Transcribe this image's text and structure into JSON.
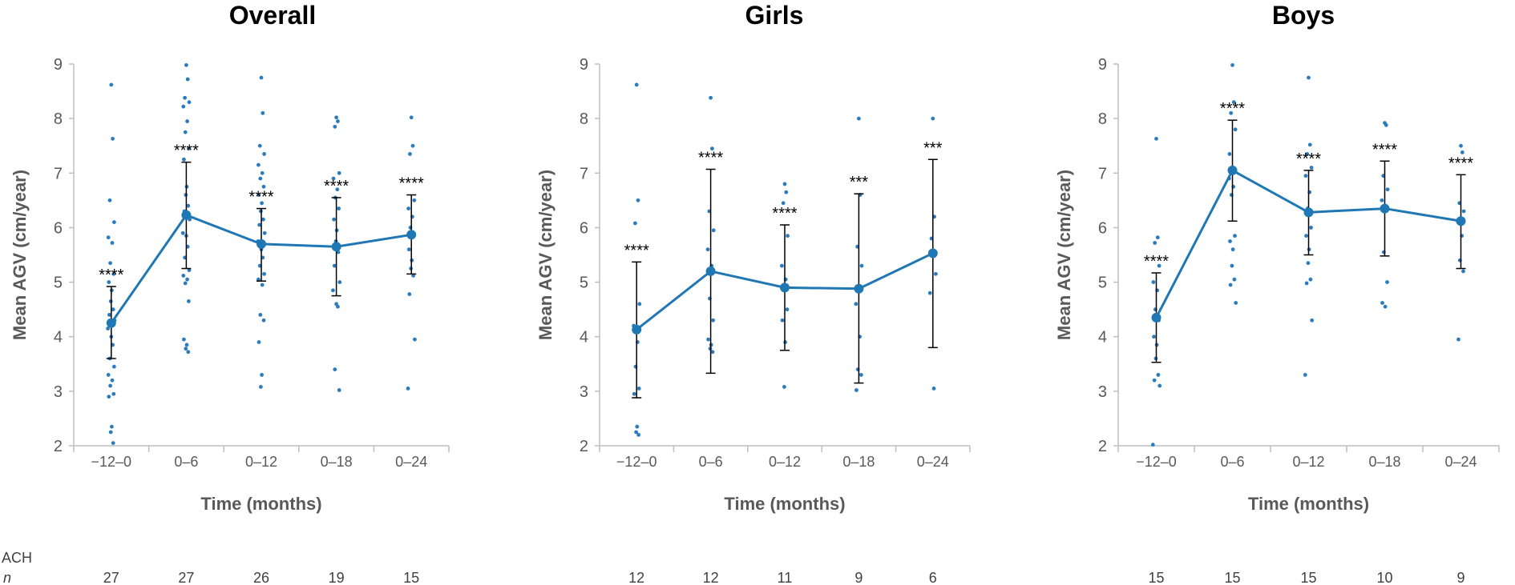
{
  "colors": {
    "series": "#1f77b4",
    "dots": "#2b7bbf",
    "axis": "#bfbfbf",
    "errorbar": "#000000",
    "text": "#595959"
  },
  "footer": {
    "group_label": "ACH",
    "n_label": "n"
  },
  "chart_data": [
    {
      "type": "line",
      "title": "Overall",
      "xlabel": "Time (months)",
      "ylabel": "Mean AGV (cm/year)",
      "ylim": [
        2,
        9
      ],
      "yticks": [
        "2",
        "3",
        "4",
        "5",
        "6",
        "7",
        "8",
        "9"
      ],
      "categories": [
        "−12–0",
        "0–6",
        "0–12",
        "0–18",
        "0–24"
      ],
      "mean": [
        4.25,
        6.23,
        5.7,
        5.65,
        5.87
      ],
      "error_low": [
        3.6,
        5.25,
        5.02,
        4.75,
        5.15
      ],
      "error_high": [
        4.92,
        7.2,
        6.35,
        6.55,
        6.6
      ],
      "significance": [
        "****",
        "****",
        "****",
        "****",
        "****"
      ],
      "n": [
        "27",
        "27",
        "26",
        "19",
        "15"
      ],
      "individual_points": [
        [
          8.62,
          7.63,
          6.5,
          6.1,
          5.82,
          5.72,
          5.35,
          5.15,
          5.0,
          4.85,
          4.65,
          4.5,
          4.4,
          4.3,
          4.15,
          4.0,
          3.85,
          3.6,
          3.45,
          3.3,
          3.2,
          3.1,
          2.95,
          2.9,
          2.35,
          2.25,
          2.05
        ],
        [
          8.98,
          8.72,
          8.38,
          8.3,
          8.22,
          7.95,
          7.75,
          7.45,
          7.25,
          6.75,
          6.6,
          6.4,
          6.3,
          6.15,
          5.9,
          5.85,
          5.65,
          5.45,
          5.22,
          5.12,
          5.05,
          4.98,
          4.65,
          3.95,
          3.85,
          3.78,
          3.72
        ],
        [
          8.75,
          8.1,
          7.5,
          7.35,
          7.15,
          7.0,
          6.9,
          6.75,
          6.6,
          6.45,
          6.3,
          6.15,
          6.05,
          5.9,
          5.75,
          5.6,
          5.45,
          5.3,
          5.15,
          5.05,
          4.95,
          4.4,
          4.3,
          3.9,
          3.3,
          3.08
        ],
        [
          8.02,
          7.95,
          7.85,
          7.0,
          6.9,
          6.7,
          6.55,
          6.35,
          6.15,
          5.95,
          5.75,
          5.55,
          5.3,
          5.0,
          4.85,
          4.6,
          4.55,
          3.4,
          3.02
        ],
        [
          8.02,
          7.5,
          7.35,
          6.5,
          6.35,
          6.2,
          6.0,
          5.85,
          5.6,
          5.4,
          5.25,
          5.12,
          4.78,
          3.95,
          3.05
        ]
      ]
    },
    {
      "type": "line",
      "title": "Girls",
      "xlabel": "Time (months)",
      "ylabel": "Mean AGV (cm/year)",
      "ylim": [
        2,
        9
      ],
      "yticks": [
        "2",
        "3",
        "4",
        "5",
        "6",
        "7",
        "8",
        "9"
      ],
      "categories": [
        "−12–0",
        "0–6",
        "0–12",
        "0–18",
        "0–24"
      ],
      "mean": [
        4.13,
        5.2,
        4.9,
        4.88,
        5.53
      ],
      "error_low": [
        2.88,
        3.33,
        3.75,
        3.15,
        3.8
      ],
      "error_high": [
        5.37,
        7.07,
        6.05,
        6.62,
        7.25
      ],
      "significance": [
        "****",
        "****",
        "****",
        "***",
        "***"
      ],
      "n": [
        "12",
        "12",
        "11",
        "9",
        "6"
      ],
      "individual_points": [
        [
          8.62,
          6.5,
          6.08,
          4.6,
          4.2,
          3.9,
          3.45,
          3.05,
          2.95,
          2.35,
          2.25,
          2.2
        ],
        [
          8.38,
          7.45,
          6.3,
          5.95,
          5.6,
          5.3,
          4.7,
          4.3,
          3.95,
          3.85,
          3.78,
          3.72
        ],
        [
          6.8,
          6.65,
          6.45,
          5.85,
          5.3,
          5.05,
          4.95,
          4.5,
          4.3,
          3.9,
          3.08
        ],
        [
          8.0,
          6.6,
          5.65,
          5.3,
          4.6,
          4.0,
          3.4,
          3.3,
          3.02
        ],
        [
          8.0,
          6.2,
          5.8,
          5.15,
          4.8,
          3.05
        ]
      ]
    },
    {
      "type": "line",
      "title": "Boys",
      "xlabel": "Time (months)",
      "ylabel": "Mean AGV (cm/year)",
      "ylim": [
        2,
        9
      ],
      "yticks": [
        "2",
        "3",
        "4",
        "5",
        "6",
        "7",
        "8",
        "9"
      ],
      "categories": [
        "−12–0",
        "0–6",
        "0–12",
        "0–18",
        "0–24"
      ],
      "mean": [
        4.35,
        7.05,
        6.28,
        6.35,
        6.12
      ],
      "error_low": [
        3.53,
        6.12,
        5.5,
        5.48,
        5.25
      ],
      "error_high": [
        5.17,
        7.97,
        7.05,
        7.22,
        6.97
      ],
      "significance": [
        "****",
        "****",
        "****",
        "****",
        "****"
      ],
      "n": [
        "15",
        "15",
        "15",
        "10",
        "9"
      ],
      "individual_points": [
        [
          7.63,
          5.82,
          5.72,
          5.3,
          5.0,
          4.85,
          4.5,
          4.3,
          4.0,
          3.85,
          3.6,
          3.3,
          3.2,
          3.1,
          2.02
        ],
        [
          8.98,
          8.3,
          8.1,
          7.8,
          7.35,
          6.75,
          6.6,
          5.85,
          5.75,
          5.6,
          5.3,
          5.05,
          4.95,
          4.62,
          6.9
        ],
        [
          8.75,
          7.52,
          7.35,
          7.1,
          6.95,
          6.65,
          6.35,
          6.0,
          5.85,
          5.6,
          5.35,
          5.05,
          4.98,
          4.3,
          3.3
        ],
        [
          7.92,
          7.88,
          6.95,
          6.7,
          6.5,
          6.4,
          5.55,
          5.0,
          4.62,
          4.55
        ],
        [
          7.5,
          7.38,
          6.45,
          6.3,
          6.1,
          5.85,
          5.4,
          5.2,
          3.95
        ]
      ]
    }
  ]
}
